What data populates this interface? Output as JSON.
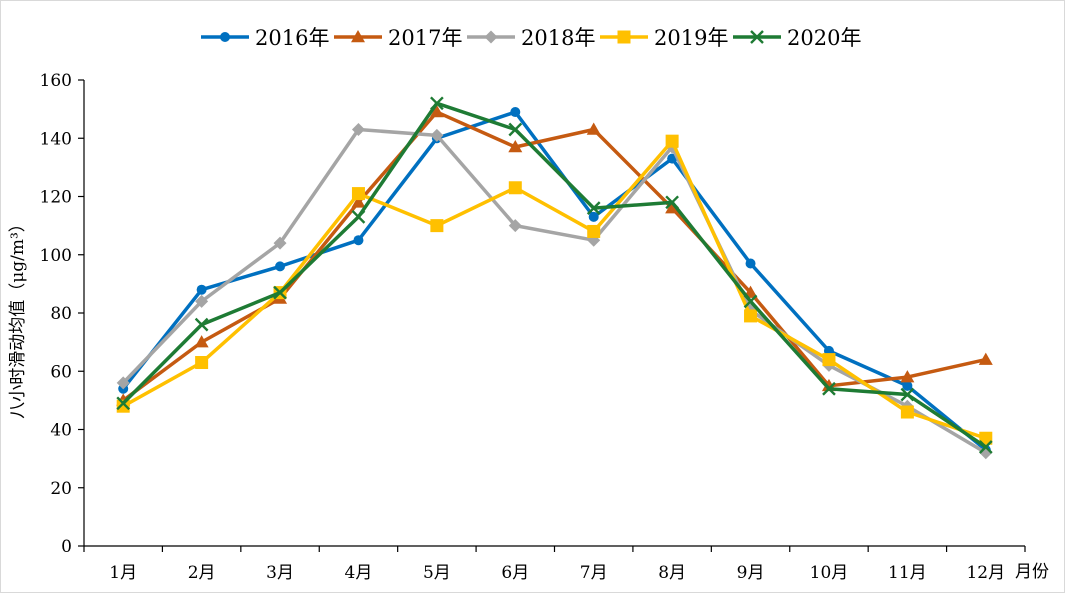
{
  "chart_data": {
    "type": "line",
    "categories": [
      "1月",
      "2月",
      "3月",
      "4月",
      "5月",
      "6月",
      "7月",
      "8月",
      "9月",
      "10月",
      "11月",
      "12月"
    ],
    "ylabel": "八小时滑动均值（μg/m³）",
    "xlabel": "月份",
    "ylim": [
      0,
      160
    ],
    "yticks": [
      0,
      20,
      40,
      60,
      80,
      100,
      120,
      140,
      160
    ],
    "grid": false,
    "legend_position": "top",
    "series": [
      {
        "name": "2016年",
        "color": "#0070C0",
        "marker": "circle",
        "values": [
          54,
          88,
          96,
          105,
          140,
          149,
          113,
          133,
          97,
          67,
          55,
          33
        ]
      },
      {
        "name": "2017年",
        "color": "#C55A11",
        "marker": "triangle",
        "values": [
          50,
          70,
          85,
          118,
          149,
          137,
          143,
          116,
          87,
          55,
          58,
          64
        ]
      },
      {
        "name": "2018年",
        "color": "#A5A5A5",
        "marker": "diamond",
        "values": [
          56,
          84,
          104,
          143,
          141,
          110,
          105,
          137,
          81,
          62,
          48,
          32
        ]
      },
      {
        "name": "2019年",
        "color": "#FFC000",
        "marker": "square",
        "values": [
          48,
          63,
          87,
          121,
          110,
          123,
          108,
          139,
          79,
          64,
          46,
          37
        ]
      },
      {
        "name": "2020年",
        "color": "#1E7B34",
        "marker": "x",
        "values": [
          49,
          76,
          87,
          113,
          152,
          143,
          116,
          118,
          84,
          54,
          52,
          34
        ]
      }
    ]
  }
}
